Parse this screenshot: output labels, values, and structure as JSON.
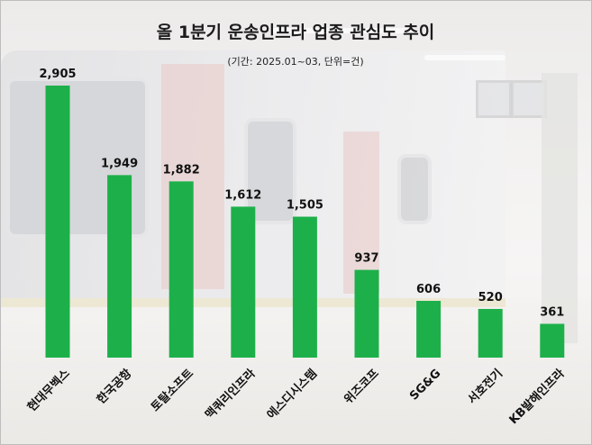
{
  "chart_data": {
    "type": "bar",
    "title": "올 1분기 운송인프라 업종 관심도 추이",
    "subtitle": "(기간: 2025.01~03, 단위=건)",
    "categories": [
      "현대무벡스",
      "한국공항",
      "토탈소프트",
      "맥쿼리인프라",
      "에스디시스템",
      "위즈코프",
      "SG&G",
      "서호전기",
      "KB발해인프라"
    ],
    "values": [
      2905,
      1949,
      1882,
      1612,
      1505,
      937,
      606,
      520,
      361
    ],
    "value_labels": [
      "2,905",
      "1,949",
      "1,882",
      "1,612",
      "1,505",
      "937",
      "606",
      "520",
      "361"
    ],
    "ylim": [
      0,
      3000
    ],
    "grid": false,
    "legend": "none",
    "bar_color": "#1db04a"
  }
}
